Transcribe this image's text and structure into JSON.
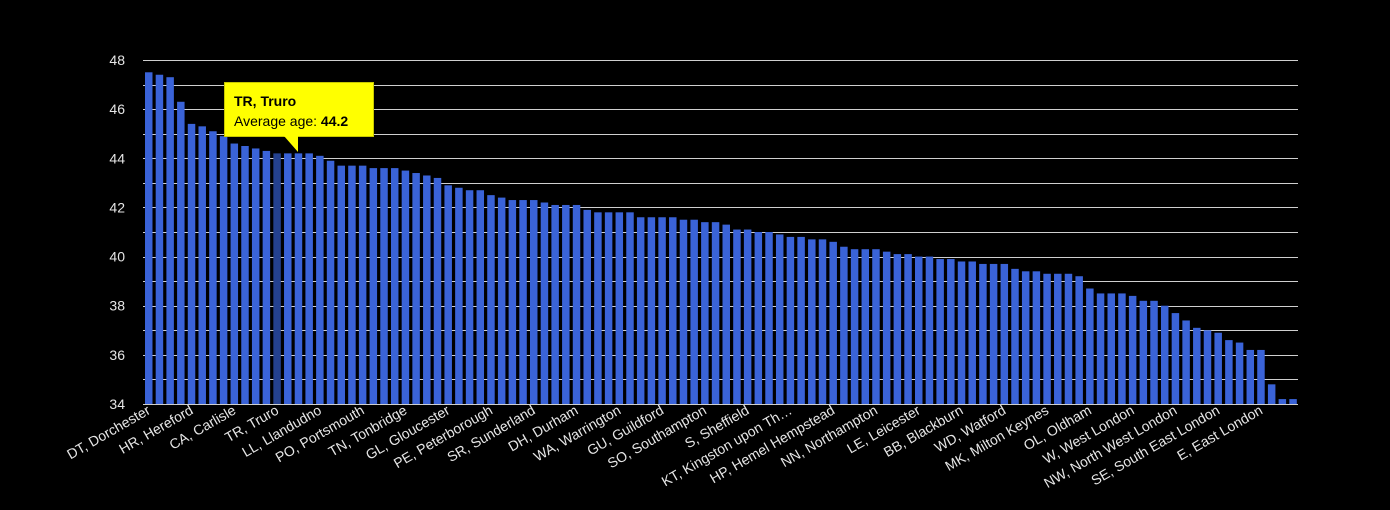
{
  "chart_data": {
    "type": "bar",
    "title": "",
    "xlabel": "",
    "ylabel": "",
    "ylim": [
      34,
      48
    ],
    "yticks": [
      34,
      36,
      38,
      40,
      42,
      44,
      46,
      48
    ],
    "grid": true,
    "labeled_categories": [
      "DT, Dorchester",
      "HR, Hereford",
      "CA, Carlisle",
      "TR, Truro",
      "LL, Llandudno",
      "PO, Portsmouth",
      "TN, Tonbridge",
      "GL, Gloucester",
      "PE, Peterborough",
      "SR, Sunderland",
      "DH, Durham",
      "WA, Warrington",
      "GU, Guildford",
      "SO, Southampton",
      "S, Sheffield",
      "KT, Kingston upon Th…",
      "HP, Hemel Hempstead",
      "NN, Northampton",
      "LE, Leicester",
      "BB, Blackburn",
      "WD, Watford",
      "MK, Milton Keynes",
      "OL, Oldham",
      "W, West London",
      "NW, North West London",
      "SE, South East London",
      "E, East London"
    ],
    "values": [
      47.5,
      47.4,
      47.3,
      46.3,
      45.4,
      45.3,
      45.1,
      44.9,
      44.6,
      44.5,
      44.4,
      44.3,
      44.2,
      44.2,
      44.2,
      44.2,
      44.1,
      43.9,
      43.7,
      43.7,
      43.7,
      43.6,
      43.6,
      43.6,
      43.5,
      43.4,
      43.3,
      43.2,
      42.9,
      42.8,
      42.7,
      42.7,
      42.5,
      42.4,
      42.3,
      42.3,
      42.3,
      42.2,
      42.1,
      42.1,
      42.1,
      41.9,
      41.8,
      41.8,
      41.8,
      41.8,
      41.6,
      41.6,
      41.6,
      41.6,
      41.5,
      41.5,
      41.4,
      41.4,
      41.3,
      41.1,
      41.1,
      41.0,
      41.0,
      40.9,
      40.8,
      40.8,
      40.7,
      40.7,
      40.6,
      40.4,
      40.3,
      40.3,
      40.3,
      40.2,
      40.1,
      40.1,
      40.0,
      40.0,
      39.9,
      39.9,
      39.8,
      39.8,
      39.7,
      39.7,
      39.7,
      39.5,
      39.4,
      39.4,
      39.3,
      39.3,
      39.3,
      39.2,
      38.7,
      38.5,
      38.5,
      38.5,
      38.4,
      38.2,
      38.2,
      38.0,
      37.7,
      37.4,
      37.1,
      37.0,
      36.9,
      36.6,
      36.5,
      36.2,
      36.2,
      34.8,
      34.2,
      34.2
    ],
    "highlight": {
      "index": 12,
      "name": "TR, Truro",
      "label": "Average age:",
      "value": "44.2"
    },
    "colors": {
      "bar": "#3a63d8",
      "highlight": "#24418f",
      "background": "#000000",
      "grid": "#cfcfcf",
      "text": "#e6e6e6",
      "tooltip": "#ffff00"
    }
  }
}
